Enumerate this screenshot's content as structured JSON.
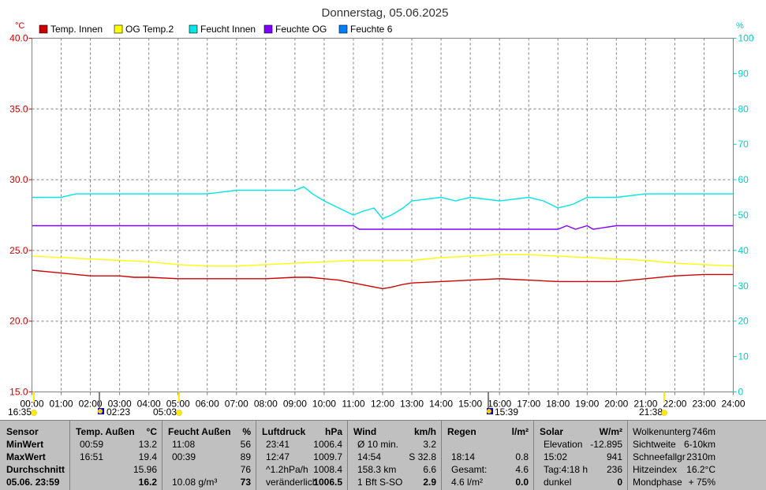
{
  "title": "Donnerstag, 05.06.2025",
  "colors": {
    "temp_innen": "#cc0000",
    "og_temp2": "#ffff00",
    "feucht_innen": "#00e5e5",
    "feuchte_og": "#8000ff",
    "feuchte_6": "#0080ff",
    "axis_left": "#cc0000",
    "axis_right": "#00cccc",
    "grid": "#808080",
    "panel_bg": "#c0c0c0"
  },
  "chart_data": {
    "type": "line",
    "title": "Donnerstag, 05.06.2025",
    "left_unit": "°C",
    "right_unit": "%",
    "ylim_left": [
      15,
      40
    ],
    "ylim_right": [
      0,
      100
    ],
    "left_ticks": [
      "15.0",
      "20.0",
      "25.0",
      "30.0",
      "35.0",
      "40.0"
    ],
    "right_ticks": [
      "0",
      "10",
      "20",
      "30",
      "40",
      "50",
      "60",
      "70",
      "80",
      "90",
      "100"
    ],
    "x_ticks": [
      "00:00",
      "01:00",
      "02:00",
      "03:00",
      "04:00",
      "05:00",
      "06:00",
      "07:00",
      "08:00",
      "09:00",
      "10:00",
      "11:00",
      "12:00",
      "13:00",
      "14:00",
      "15:00",
      "16:00",
      "17:00",
      "18:00",
      "19:00",
      "20:00",
      "21:00",
      "22:00",
      "23:00",
      "24:00"
    ],
    "legend": [
      {
        "name": "Temp. Innen",
        "color": "#cc0000"
      },
      {
        "name": "OG Temp.2",
        "color": "#ffff00"
      },
      {
        "name": "Feucht Innen",
        "color": "#00e5e5"
      },
      {
        "name": "Feuchte OG",
        "color": "#8000ff"
      },
      {
        "name": "Feuchte 6",
        "color": "#0080ff"
      }
    ],
    "series": [
      {
        "name": "Temp. Innen",
        "axis": "left",
        "color": "#cc0000",
        "points": [
          [
            0,
            23.6
          ],
          [
            0.5,
            23.5
          ],
          [
            1,
            23.4
          ],
          [
            1.5,
            23.3
          ],
          [
            2,
            23.2
          ],
          [
            3,
            23.2
          ],
          [
            3.5,
            23.1
          ],
          [
            4,
            23.1
          ],
          [
            5,
            23.0
          ],
          [
            6,
            23.0
          ],
          [
            7,
            23.0
          ],
          [
            8,
            23.0
          ],
          [
            9,
            23.1
          ],
          [
            9.5,
            23.1
          ],
          [
            10,
            23.0
          ],
          [
            10.5,
            22.9
          ],
          [
            11,
            22.7
          ],
          [
            11.5,
            22.5
          ],
          [
            12,
            22.3
          ],
          [
            12.3,
            22.4
          ],
          [
            12.7,
            22.6
          ],
          [
            13,
            22.7
          ],
          [
            14,
            22.8
          ],
          [
            15,
            22.9
          ],
          [
            16,
            23.0
          ],
          [
            17,
            22.9
          ],
          [
            18,
            22.8
          ],
          [
            19,
            22.8
          ],
          [
            20,
            22.8
          ],
          [
            21,
            23.0
          ],
          [
            22,
            23.2
          ],
          [
            23,
            23.3
          ],
          [
            24,
            23.3
          ]
        ]
      },
      {
        "name": "OG Temp.2",
        "axis": "left",
        "color": "#ffff00",
        "points": [
          [
            0,
            24.6
          ],
          [
            1,
            24.5
          ],
          [
            2,
            24.4
          ],
          [
            3,
            24.3
          ],
          [
            4,
            24.2
          ],
          [
            5,
            24.0
          ],
          [
            6,
            23.9
          ],
          [
            7,
            23.9
          ],
          [
            8,
            24.0
          ],
          [
            9,
            24.1
          ],
          [
            10,
            24.2
          ],
          [
            11,
            24.3
          ],
          [
            12,
            24.3
          ],
          [
            13,
            24.3
          ],
          [
            14,
            24.5
          ],
          [
            15,
            24.6
          ],
          [
            16,
            24.7
          ],
          [
            17,
            24.7
          ],
          [
            18,
            24.6
          ],
          [
            19,
            24.5
          ],
          [
            20,
            24.4
          ],
          [
            21,
            24.3
          ],
          [
            22,
            24.1
          ],
          [
            23,
            24.0
          ],
          [
            24,
            23.9
          ]
        ]
      },
      {
        "name": "Feucht Innen",
        "axis": "right",
        "color": "#00e5e5",
        "points": [
          [
            0,
            55
          ],
          [
            1,
            55
          ],
          [
            1.5,
            56
          ],
          [
            2,
            56
          ],
          [
            3,
            56
          ],
          [
            4,
            56
          ],
          [
            5,
            56
          ],
          [
            6,
            56
          ],
          [
            7,
            57
          ],
          [
            8,
            57
          ],
          [
            9,
            57
          ],
          [
            9.3,
            58
          ],
          [
            9.6,
            56
          ],
          [
            10,
            54
          ],
          [
            10.5,
            52
          ],
          [
            11,
            50
          ],
          [
            11.3,
            51
          ],
          [
            11.7,
            52
          ],
          [
            12,
            49
          ],
          [
            12.3,
            50
          ],
          [
            12.7,
            52
          ],
          [
            13,
            54
          ],
          [
            14,
            55
          ],
          [
            14.5,
            54
          ],
          [
            15,
            55
          ],
          [
            16,
            54
          ],
          [
            17,
            55
          ],
          [
            17.5,
            54
          ],
          [
            18,
            52
          ],
          [
            18.5,
            53
          ],
          [
            19,
            55
          ],
          [
            20,
            55
          ],
          [
            21,
            56
          ],
          [
            22,
            56
          ],
          [
            23,
            56
          ],
          [
            24,
            56
          ]
        ]
      },
      {
        "name": "Feuchte OG",
        "axis": "right",
        "color": "#8000ff",
        "points": [
          [
            0,
            47
          ],
          [
            11,
            47
          ],
          [
            11.2,
            46
          ],
          [
            12,
            46
          ],
          [
            12.5,
            46
          ],
          [
            13,
            46
          ],
          [
            14,
            46
          ],
          [
            15,
            46
          ],
          [
            16,
            46
          ],
          [
            17,
            46
          ],
          [
            18,
            46
          ],
          [
            18.3,
            47
          ],
          [
            18.6,
            46
          ],
          [
            19,
            47
          ],
          [
            19.2,
            46
          ],
          [
            20,
            47
          ],
          [
            24,
            47
          ]
        ]
      }
    ]
  },
  "markers": {
    "sunrise_moon": [
      {
        "label": "16:35"
      },
      {
        "label": "02:23"
      },
      {
        "label": "05:03"
      },
      {
        "label": "15:39"
      },
      {
        "label": "21:38"
      }
    ]
  },
  "panel": {
    "sensor": {
      "header": "Sensor",
      "rows": [
        "MinWert",
        "MaxWert",
        "Durchschnitt",
        "05.06. 23:59"
      ]
    },
    "temp": {
      "header": "Temp. Außen",
      "unit": "°C",
      "rows": [
        [
          "00:59",
          "13.2"
        ],
        [
          "16:51",
          "19.4"
        ],
        [
          "",
          "15.96"
        ],
        [
          "",
          "16.2"
        ]
      ]
    },
    "feucht": {
      "header": "Feucht Außen",
      "unit": "%",
      "rows": [
        [
          "11:08",
          "56"
        ],
        [
          "00:39",
          "89"
        ],
        [
          "",
          "76"
        ],
        [
          "10.08 g/m³",
          "73"
        ]
      ]
    },
    "luft": {
      "header": "Luftdruck",
      "unit": "hPa",
      "rows": [
        [
          "23:41",
          "1006.4"
        ],
        [
          "12:47",
          "1009.7"
        ],
        [
          "^1.2hPa/h",
          "1008.4"
        ],
        [
          "veränderlich",
          "1006.5"
        ]
      ]
    },
    "wind": {
      "header": "Wind",
      "unit": "km/h",
      "rows": [
        [
          "Ø 10 min.",
          "3.2"
        ],
        [
          "14:54",
          "S 32.8"
        ],
        [
          "158.3 km",
          "6.6"
        ],
        [
          "1 Bft S-SO",
          "2.9"
        ]
      ]
    },
    "regen": {
      "header": "Regen",
      "unit": "l/m²",
      "rows": [
        [
          "",
          ""
        ],
        [
          "18:14",
          "0.8"
        ],
        [
          "Gesamt:",
          "4.6"
        ],
        [
          "4.6 l/m²",
          "0.0"
        ]
      ]
    },
    "solar": {
      "header": "Solar",
      "unit": "W/m²",
      "rows": [
        [
          "Elevation",
          "-12.895"
        ],
        [
          "15:02",
          "941"
        ],
        [
          "Tag:4:18 h",
          "236"
        ],
        [
          "dunkel",
          "0"
        ]
      ]
    },
    "extra": {
      "rows": [
        [
          "Wolkenunterg",
          "746m"
        ],
        [
          "Sichtweite",
          "6-10km"
        ],
        [
          "Schneefallgr",
          "2310m"
        ],
        [
          "Hitzeindex",
          "16.2°C"
        ],
        [
          "Mondphase",
          "+ 75%"
        ]
      ]
    }
  }
}
